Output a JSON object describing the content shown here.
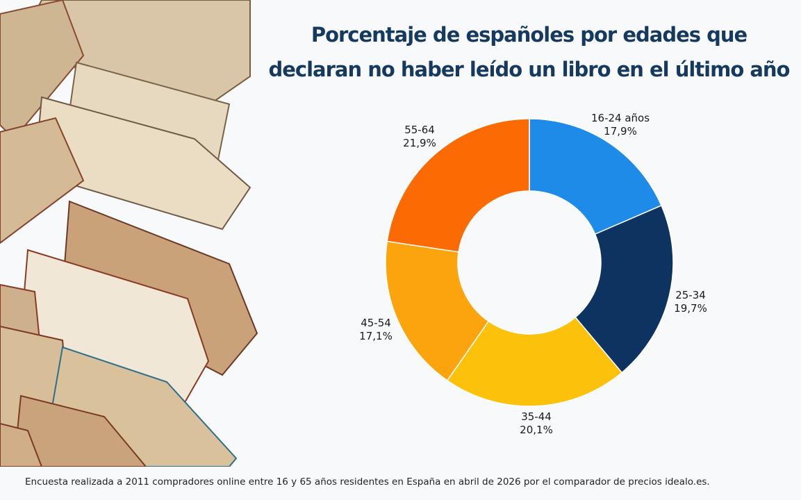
{
  "title_line1": "Porcentaje de españoles por edades que",
  "title_line2": "declaran no haber leído un libro en el último año",
  "footnote": "Encuesta realizada a 2011 compradores online entre 16 y 65 años residentes en España en abril de 2026 por el comparador de precios idealo.es.",
  "chart_data": {
    "type": "pie",
    "style": "donut",
    "title": "Porcentaje de españoles por edades que declaran no haber leído un libro en el último año",
    "categories": [
      "16-24 años",
      "25-34",
      "35-44",
      "45-54",
      "55-64"
    ],
    "values": [
      17.9,
      19.7,
      20.1,
      17.1,
      21.9
    ],
    "value_labels": [
      "17,9%",
      "19,7%",
      "20,1%",
      "17,1%",
      "21,9%"
    ],
    "colors": [
      "#1e8be8",
      "#0d3460",
      "#fbc10b",
      "#fca40d",
      "#fb6a03"
    ],
    "legend": "none"
  }
}
